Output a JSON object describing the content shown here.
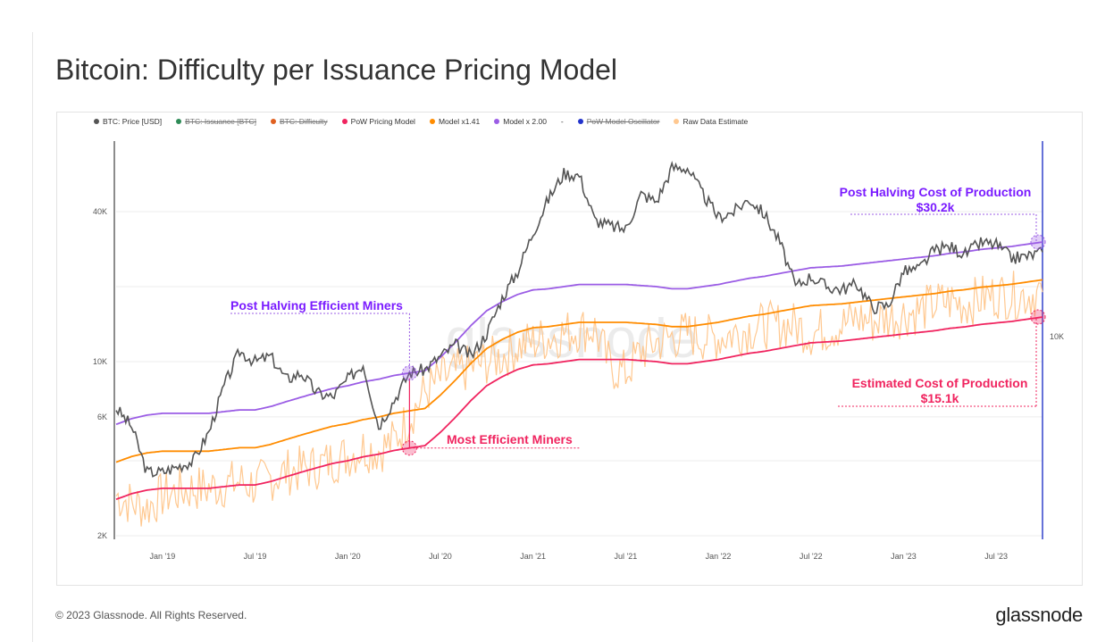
{
  "title": "Bitcoin: Difficulty per Issuance Pricing Model",
  "legend": [
    {
      "label": "BTC: Price [USD]",
      "color": "#555555",
      "hidden": false
    },
    {
      "label": "BTC: Issuance [BTC]",
      "color": "#2e8b57",
      "hidden": true
    },
    {
      "label": "BTC: Difficulty",
      "color": "#e06020",
      "hidden": true
    },
    {
      "label": "PoW Pricing Model",
      "color": "#f0245f",
      "hidden": false
    },
    {
      "label": "Model x1.41",
      "color": "#ff8c00",
      "hidden": false
    },
    {
      "label": "Model x 2.00",
      "color": "#9b5de5",
      "hidden": false
    },
    {
      "label": "-",
      "color": "",
      "hidden": false
    },
    {
      "label": "PoW Model Oscillator",
      "color": "#2233cc",
      "hidden": true
    },
    {
      "label": "Raw Data Estimate",
      "color": "#ffc890",
      "hidden": false
    }
  ],
  "annotations": {
    "post_halving_cost": "Post Halving Cost of Production",
    "post_halving_cost_value": "$30.2k",
    "post_halving_efficient": "Post Halving Efficient Miners",
    "most_efficient": "Most Efficient Miners",
    "estimated_cost": "Estimated Cost of Production",
    "estimated_cost_value": "$15.1k"
  },
  "watermark": "glassnode",
  "footer": "© 2023 Glassnode. All Rights Reserved.",
  "logo": "glassnode",
  "chart_data": {
    "type": "line",
    "y_scale": "log",
    "ylim": [
      2000,
      75000
    ],
    "y_ticks": [
      "2K",
      "6K",
      "10K",
      "40K"
    ],
    "y_tick_values": [
      2000,
      6000,
      10000,
      40000
    ],
    "y_grid_values": [
      2000,
      4000,
      6000,
      10000,
      20000,
      40000
    ],
    "right_axis_ticks": [
      "10K"
    ],
    "xlim": [
      "2018-10",
      "2023-10"
    ],
    "x_ticks": [
      {
        "label": "Jan '19",
        "date": "2019-01"
      },
      {
        "label": "Jul '19",
        "date": "2019-07"
      },
      {
        "label": "Jan '20",
        "date": "2020-01"
      },
      {
        "label": "Jul '20",
        "date": "2020-07"
      },
      {
        "label": "Jan '21",
        "date": "2021-01"
      },
      {
        "label": "Jul '21",
        "date": "2021-07"
      },
      {
        "label": "Jan '22",
        "date": "2022-01"
      },
      {
        "label": "Jul '22",
        "date": "2022-07"
      },
      {
        "label": "Jan '23",
        "date": "2023-01"
      },
      {
        "label": "Jul '23",
        "date": "2023-07"
      }
    ],
    "grid": true,
    "legend_position": "top",
    "months": [
      "2018-10",
      "2018-11",
      "2018-12",
      "2019-01",
      "2019-02",
      "2019-03",
      "2019-04",
      "2019-05",
      "2019-06",
      "2019-07",
      "2019-08",
      "2019-09",
      "2019-10",
      "2019-11",
      "2019-12",
      "2020-01",
      "2020-02",
      "2020-03",
      "2020-04",
      "2020-05",
      "2020-06",
      "2020-07",
      "2020-08",
      "2020-09",
      "2020-10",
      "2020-11",
      "2020-12",
      "2021-01",
      "2021-02",
      "2021-03",
      "2021-04",
      "2021-05",
      "2021-06",
      "2021-07",
      "2021-08",
      "2021-09",
      "2021-10",
      "2021-11",
      "2021-12",
      "2022-01",
      "2022-02",
      "2022-03",
      "2022-04",
      "2022-05",
      "2022-06",
      "2022-07",
      "2022-08",
      "2022-09",
      "2022-10",
      "2022-11",
      "2022-12",
      "2023-01",
      "2023-02",
      "2023-03",
      "2023-04",
      "2023-05",
      "2023-06",
      "2023-07",
      "2023-08",
      "2023-09",
      "2023-10"
    ],
    "series": [
      {
        "name": "BTC: Price [USD]",
        "values": [
          6500,
          5500,
          3600,
          3600,
          3800,
          4000,
          5200,
          8000,
          11000,
          10000,
          10500,
          8500,
          9000,
          7500,
          7200,
          8500,
          9800,
          5500,
          7000,
          9000,
          9300,
          10500,
          11700,
          10500,
          13000,
          18000,
          23000,
          33000,
          45000,
          57000,
          56000,
          37000,
          35000,
          34000,
          47000,
          44000,
          60000,
          60000,
          47000,
          38000,
          40000,
          45000,
          39000,
          30000,
          20000,
          22000,
          20000,
          19500,
          20500,
          16500,
          16800,
          23000,
          23500,
          28000,
          29000,
          27000,
          30000,
          29500,
          26000,
          26500,
          27500
        ]
      },
      {
        "name": "PoW Pricing Model",
        "values": [
          2800,
          2950,
          3050,
          3100,
          3100,
          3100,
          3100,
          3150,
          3200,
          3200,
          3300,
          3450,
          3600,
          3750,
          3900,
          4000,
          4150,
          4250,
          4400,
          4500,
          4600,
          5200,
          6000,
          7000,
          8000,
          8700,
          9300,
          9700,
          9800,
          10000,
          10200,
          10200,
          10200,
          10200,
          10100,
          10000,
          9800,
          9800,
          10000,
          10200,
          10500,
          10800,
          11000,
          11300,
          11600,
          11900,
          12000,
          12100,
          12300,
          12500,
          12700,
          12900,
          13100,
          13300,
          13600,
          13800,
          14100,
          14300,
          14500,
          14800,
          15100
        ]
      },
      {
        "name": "Raw Data Estimate",
        "values": [
          2900,
          2700,
          2600,
          2900,
          3000,
          3100,
          3100,
          3200,
          3300,
          3200,
          3400,
          3600,
          3700,
          3800,
          4000,
          4200,
          4500,
          4400,
          4800,
          6000,
          7500,
          8500,
          9000,
          9500,
          10000,
          10500,
          11500,
          12000,
          12500,
          13000,
          13500,
          13500,
          9500,
          9000,
          11000,
          12000,
          12500,
          13000,
          12500,
          12500,
          13000,
          13500,
          14000,
          14000,
          14000,
          13000,
          13500,
          14000,
          15000,
          14500,
          15000,
          15500,
          16000,
          17000,
          17500,
          17000,
          18000,
          18500,
          18500,
          18500,
          19000
        ]
      }
    ],
    "multipliers": [
      1.41,
      2.0
    ],
    "markers": [
      {
        "label": "Post Halving Efficient Miners",
        "date": "2020-05"
      },
      {
        "label": "Most Efficient Miners",
        "date": "2020-05"
      },
      {
        "label": "Post Halving Cost of Production",
        "value": 30200
      },
      {
        "label": "Estimated Cost of Production",
        "value": 15100
      }
    ]
  }
}
